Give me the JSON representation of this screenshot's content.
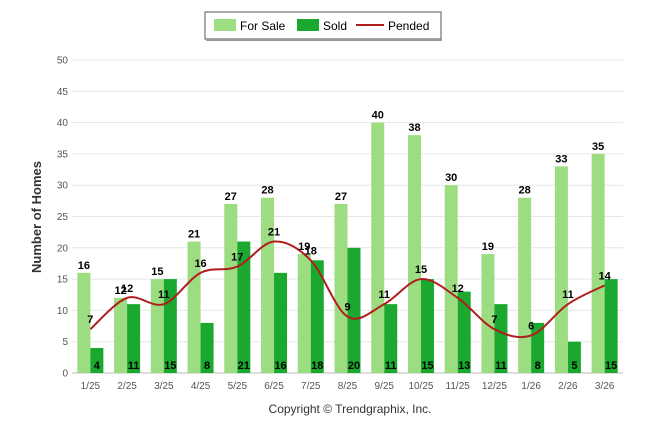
{
  "chart_data": {
    "type": "bar",
    "categories": [
      "1/25",
      "2/25",
      "3/25",
      "4/25",
      "5/25",
      "6/25",
      "7/25",
      "8/25",
      "9/25",
      "10/25",
      "11/25",
      "12/25",
      "1/26",
      "2/26",
      "3/26"
    ],
    "series": [
      {
        "name": "For Sale",
        "type": "bar",
        "color": "#9ddd82",
        "values": [
          16,
          12,
          15,
          21,
          27,
          28,
          19,
          27,
          40,
          38,
          30,
          19,
          28,
          33,
          35
        ]
      },
      {
        "name": "Sold",
        "type": "bar",
        "color": "#1aa82f",
        "values": [
          4,
          11,
          15,
          8,
          21,
          16,
          18,
          20,
          11,
          15,
          13,
          11,
          8,
          5,
          15
        ]
      },
      {
        "name": "Pended",
        "type": "line",
        "color": "#b01e1e",
        "values": [
          7,
          12,
          11,
          16,
          17,
          21,
          18,
          9,
          11,
          15,
          12,
          7,
          6,
          11,
          14
        ]
      }
    ],
    "ylabel": "Number of Homes",
    "xlabel": "",
    "ylim": [
      0,
      50
    ],
    "yticks": [
      0,
      5,
      10,
      15,
      20,
      25,
      30,
      35,
      40,
      45,
      50
    ],
    "grid": true,
    "legend_position": "top-center",
    "credit": "Copyright © Trendgraphix, Inc."
  }
}
